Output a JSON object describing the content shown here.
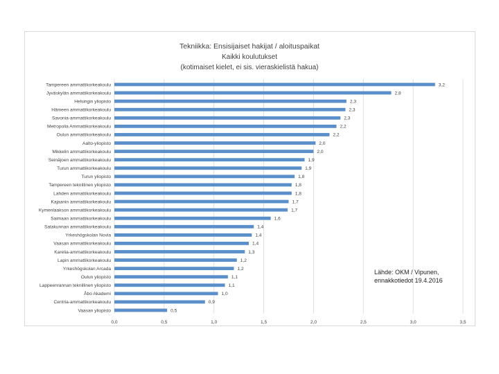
{
  "chart_data": {
    "type": "bar",
    "orientation": "horizontal",
    "title": "Tekniikka: Ensisijaiset hakijat / aloituspaikat",
    "subtitle_lines": [
      "Kaikki koulutukset",
      "(kotimaiset kielet, ei sis. vieraskielistä hakua)"
    ],
    "categories": [
      "Tampereen ammattikorkeakoulu",
      "Jyväskylän ammattikorkeakoulu",
      "Helsingin yliopisto",
      "Hämeen ammattikorkeakoulu",
      "Savonia-ammattikorkeakoulu",
      "Metropolia Ammattikorkeakoulu",
      "Oulun ammattikorkeakoulu",
      "Aalto-yliopisto",
      "Mikkelin ammattikorkeakoulu",
      "Seinäjoen ammattikorkeakoulu",
      "Turun ammattikorkeakoulu",
      "Turun yliopisto",
      "Tampereen teknillinen yliopisto",
      "Lahden ammattikorkeakoulu",
      "Kajaanin ammattikorkeakoulu",
      "Kymenlaakson ammattikorkeakoulu",
      "Saimaan ammattikorkeakoulu",
      "Satakunnan ammattikorkeakoulu",
      "Yrkeshögskolan Novia",
      "Vaasan ammattikorkeakoulu",
      "Karelia-ammattikorkeakoulu",
      "Lapin ammattikorkeakoulu",
      "Yrkeshögskolan Arcada",
      "Oulun yliopisto",
      "Lappeenrannan teknillinen yliopisto",
      "Åbo Akademi",
      "Centria-ammattikorkeakoulu",
      "Vaasan yliopisto"
    ],
    "values": [
      3.22,
      2.78,
      2.33,
      2.32,
      2.27,
      2.23,
      2.16,
      2.02,
      2.0,
      1.91,
      1.88,
      1.81,
      1.78,
      1.78,
      1.75,
      1.74,
      1.57,
      1.4,
      1.38,
      1.35,
      1.31,
      1.23,
      1.2,
      1.14,
      1.11,
      1.04,
      0.91,
      0.53
    ],
    "value_labels": [
      "3,2",
      "2,8",
      "2,3",
      "2,3",
      "2,3",
      "2,2",
      "2,2",
      "2,0",
      "2,0",
      "1,9",
      "1,9",
      "1,8",
      "1,8",
      "1,8",
      "1,7",
      "1,7",
      "1,6",
      "1,4",
      "1,4",
      "1,4",
      "1,3",
      "1,2",
      "1,2",
      "1,1",
      "1,1",
      "1,0",
      "0,9",
      "0,5"
    ],
    "xlim": [
      0,
      3.5
    ],
    "xticks": [
      0,
      0.5,
      1.0,
      1.5,
      2.0,
      2.5,
      3.0,
      3.5
    ],
    "xtick_labels": [
      "0,0",
      "0,5",
      "1,0",
      "1,5",
      "2,0",
      "2,5",
      "3,0",
      "3,5"
    ],
    "grid": true,
    "bar_color": "#5b8fc9",
    "source_lines": [
      "Lähde: OKM / Vipunen,",
      "ennakkotiedot 19.4.2016"
    ]
  }
}
